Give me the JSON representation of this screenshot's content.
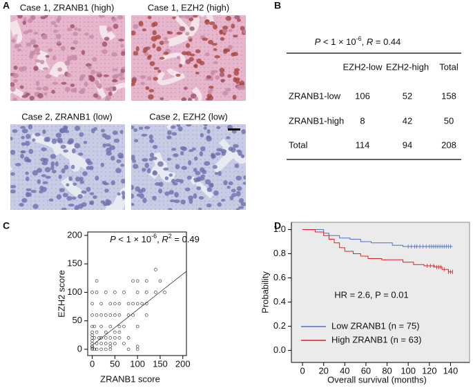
{
  "panel_labels": [
    "A",
    "B",
    "C",
    "D"
  ],
  "micrographs": [
    "Case 1, ZRANB1 (high)",
    "Case 1, EZH2 (high)",
    "Case 2, ZRANB1 (low)",
    "Case 2, EZH2 (low)"
  ],
  "table": {
    "title_parts": [
      "P",
      " < 1 × 10",
      "-6",
      ", ",
      "R",
      " = 0.44"
    ],
    "columns": [
      "EZH2-low",
      "EZH2-high",
      "Total"
    ],
    "rows": [
      [
        "ZRANB1-low",
        106,
        52,
        158
      ],
      [
        "ZRANB1-high",
        8,
        42,
        50
      ],
      [
        "Total",
        114,
        94,
        208
      ]
    ]
  },
  "chart_data": [
    {
      "type": "scatter",
      "annotation_parts": [
        "P",
        " < 1 × 10",
        "-6",
        ", ",
        "R",
        "2",
        " = 0.49"
      ],
      "x_label": "ZRANB1 score",
      "y_label": "EZH2 score",
      "xlim": [
        -10,
        208
      ],
      "ylim": [
        -11,
        206
      ],
      "xticks": [
        0,
        50,
        100,
        150,
        200
      ],
      "yticks": [
        0,
        50,
        100,
        150,
        200
      ],
      "x": [
        0,
        0,
        0,
        0,
        0,
        0,
        0,
        0,
        0,
        0,
        0,
        0,
        0,
        5,
        5,
        5,
        10,
        10,
        10,
        10,
        10,
        10,
        15,
        20,
        20,
        20,
        20,
        20,
        20,
        30,
        30,
        30,
        30,
        30,
        30,
        40,
        40,
        40,
        40,
        40,
        40,
        40,
        50,
        50,
        50,
        50,
        50,
        50,
        60,
        60,
        60,
        60,
        60,
        70,
        70,
        70,
        80,
        80,
        80,
        80,
        90,
        90,
        90,
        100,
        100,
        100,
        100,
        100,
        100,
        110,
        120,
        120,
        120,
        120,
        140,
        140,
        150,
        160
      ],
      "y": [
        0,
        5,
        10,
        15,
        20,
        25,
        30,
        40,
        60,
        80,
        100,
        5,
        2,
        0,
        20,
        40,
        0,
        10,
        30,
        60,
        100,
        120,
        20,
        0,
        10,
        20,
        40,
        60,
        80,
        0,
        10,
        20,
        30,
        60,
        100,
        0,
        5,
        10,
        20,
        40,
        60,
        80,
        10,
        20,
        30,
        60,
        80,
        100,
        20,
        30,
        40,
        60,
        80,
        10,
        40,
        100,
        0,
        20,
        60,
        80,
        60,
        80,
        120,
        0,
        5,
        40,
        80,
        100,
        120,
        80,
        60,
        80,
        100,
        120,
        100,
        140,
        120,
        100
      ],
      "fit": {
        "x": [
          0,
          208
        ],
        "y": [
          7,
          137
        ]
      }
    },
    {
      "type": "line",
      "annotation": "HR = 2.6, P = 0.01",
      "x_label": "Overall survival (months)",
      "y_label": "Probability",
      "xlim": [
        -10.5,
        158
      ],
      "ylim": [
        -0.1,
        1.06
      ],
      "xticks": [
        0,
        20,
        40,
        60,
        80,
        100,
        120,
        140
      ],
      "yticks": [
        {
          "value": 0,
          "label": "0.0"
        },
        0.2,
        0.4,
        0.6,
        0.8,
        {
          "value": 1,
          "label": "1.0"
        }
      ],
      "background": "#ebebeb",
      "legend": "lower left",
      "series": [
        {
          "name": "Low ZRANB1 (n = 75)",
          "color": "#4f6fc8",
          "x": [
            0,
            20,
            25,
            35,
            45,
            55,
            65,
            85,
            95,
            100,
            142
          ],
          "values": [
            1.0,
            0.97,
            0.95,
            0.93,
            0.92,
            0.9,
            0.89,
            0.87,
            0.86,
            0.86,
            0.86
          ],
          "censored": [
            100,
            103,
            106,
            108,
            111,
            114,
            117,
            120,
            122,
            124,
            126,
            128,
            130,
            132,
            134,
            136,
            138,
            140
          ]
        },
        {
          "name": "High ZRANB1 (n = 63)",
          "color": "#e02020",
          "x": [
            0,
            12,
            20,
            25,
            30,
            35,
            40,
            48,
            55,
            62,
            75,
            95,
            105,
            115,
            125,
            132,
            138,
            142
          ],
          "values": [
            1.0,
            0.98,
            0.95,
            0.92,
            0.89,
            0.85,
            0.82,
            0.8,
            0.78,
            0.76,
            0.75,
            0.73,
            0.71,
            0.7,
            0.69,
            0.67,
            0.65,
            0.65
          ],
          "censored": [
            118,
            121,
            124,
            127,
            129,
            131,
            134,
            138,
            140,
            142
          ]
        }
      ]
    }
  ]
}
